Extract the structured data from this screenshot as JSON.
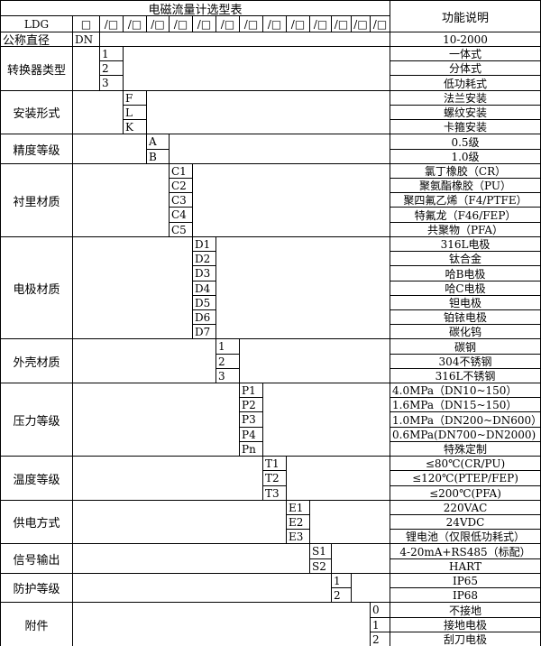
{
  "header": {
    "title": "电磁流量计选型表",
    "function_col": "功能说明",
    "model_prefix": "LDG",
    "first_slot": "□",
    "slot": "/□",
    "slot_count": 13
  },
  "nominal": {
    "label": "公称直径",
    "code": "DN",
    "desc": "10-2000"
  },
  "groups": [
    {
      "label": "转换器类型",
      "slot": 1,
      "codes": [
        "1",
        "2",
        "3"
      ],
      "descs": [
        "一体式",
        "分体式",
        "低功耗式"
      ]
    },
    {
      "label": "安装形式",
      "slot": 2,
      "codes": [
        "F",
        "L",
        "K"
      ],
      "descs": [
        "法兰安装",
        "螺纹安装",
        "卡箍安装"
      ]
    },
    {
      "label": "精度等级",
      "slot": 3,
      "codes": [
        "A",
        "B"
      ],
      "descs": [
        "0.5级",
        "1.0级"
      ]
    },
    {
      "label": "衬里材质",
      "slot": 4,
      "codes": [
        "C1",
        "C2",
        "C3",
        "C4",
        "C5"
      ],
      "descs": [
        "氯丁橡胶（CR）",
        "聚氨酯橡胶（PU）",
        "聚四氟乙烯（F4/PTFE）",
        "特氟龙（F46/FEP）",
        "共聚物（PFA）"
      ]
    },
    {
      "label": "电极材质",
      "slot": 5,
      "codes": [
        "D1",
        "D2",
        "D3",
        "D4",
        "D5",
        "D6",
        "D7"
      ],
      "descs": [
        "316L电极",
        "钛合金",
        "哈B电极",
        "哈C电极",
        "钽电极",
        "铂铱电极",
        "碳化钨"
      ]
    },
    {
      "label": "外壳材质",
      "slot": 6,
      "codes": [
        "1",
        "2",
        "3"
      ],
      "descs": [
        "碳钢",
        "304不锈钢",
        "316L不锈钢"
      ]
    },
    {
      "label": "压力等级",
      "slot": 7,
      "codes": [
        "P1",
        "P2",
        "P3",
        "P4",
        "Pn"
      ],
      "descs": [
        "4.0MPa（DN10~150）",
        "1.6MPa（DN15~150）",
        "1.0MPa（DN200~DN600）",
        "0.6MPa(DN700~DN2000)",
        "特殊定制"
      ],
      "left": [
        true,
        true,
        true,
        true,
        false
      ]
    },
    {
      "label": "温度等级",
      "slot": 8,
      "codes": [
        "T1",
        "T2",
        "T3"
      ],
      "descs": [
        "≤80℃(CR/PU)",
        "≤120℃(PTEP/FEP)",
        "≤200℃(PFA)"
      ]
    },
    {
      "label": "供电方式",
      "slot": 9,
      "codes": [
        "E1",
        "E2",
        "E3"
      ],
      "descs": [
        "220VAC",
        "24VDC",
        "锂电池（仅限低功耗式）"
      ]
    },
    {
      "label": "信号输出",
      "slot": 10,
      "codes": [
        "S1",
        "S2"
      ],
      "descs": [
        "4-20mA+RS485（标配）",
        "HART"
      ]
    },
    {
      "label": "防护等级",
      "slot": 11,
      "codes": [
        "1",
        "2"
      ],
      "descs": [
        "IP65",
        "IP68"
      ]
    },
    {
      "label": "附件",
      "slot": 13,
      "codes": [
        "0",
        "1",
        "2"
      ],
      "descs": [
        "不接地",
        "接地电极",
        "刮刀电极"
      ]
    }
  ]
}
